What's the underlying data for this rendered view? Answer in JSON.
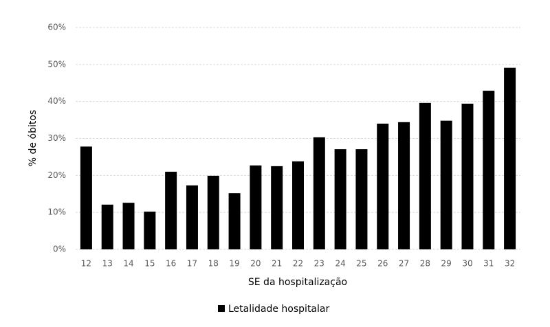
{
  "chart_data": {
    "type": "bar",
    "x_label": "SE da hospitalização",
    "y_label": "% de óbitos",
    "categories": [
      "12",
      "13",
      "14",
      "15",
      "16",
      "17",
      "18",
      "19",
      "20",
      "21",
      "22",
      "23",
      "24",
      "25",
      "26",
      "27",
      "28",
      "29",
      "30",
      "31",
      "32"
    ],
    "series": [
      {
        "name": "Letalidade hospitalar",
        "color": "#000000",
        "values": [
          27.8,
          12.1,
          12.6,
          10.2,
          21.0,
          17.3,
          19.9,
          15.2,
          22.7,
          22.5,
          23.8,
          30.3,
          27.1,
          27.1,
          34.0,
          34.4,
          39.6,
          34.8,
          39.4,
          42.9,
          49.1
        ]
      }
    ],
    "ylim": [
      0,
      60
    ],
    "yticks": [
      {
        "value": 0,
        "label": "0%"
      },
      {
        "value": 10,
        "label": "10%"
      },
      {
        "value": 20,
        "label": "20%"
      },
      {
        "value": 30,
        "label": "30%"
      },
      {
        "value": 40,
        "label": "40%"
      },
      {
        "value": 50,
        "label": "50%"
      },
      {
        "value": 60,
        "label": "60%"
      }
    ],
    "grid": true
  }
}
